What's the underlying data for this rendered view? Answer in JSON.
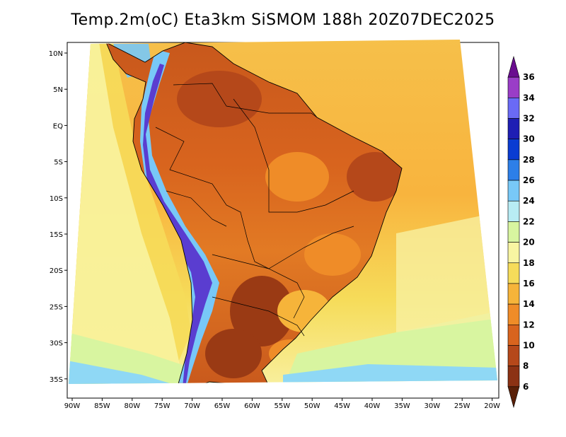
{
  "title": "Temp.2m(oC) Eta3km SiSMOM 188h 20Z07DEC2025",
  "axes": {
    "lat_labels": [
      "10N",
      "5N",
      "EQ",
      "5S",
      "10S",
      "15S",
      "20S",
      "25S",
      "30S",
      "35S"
    ],
    "lon_labels": [
      "90W",
      "85W",
      "80W",
      "75W",
      "70W",
      "65W",
      "60W",
      "55W",
      "50W",
      "45W",
      "40W",
      "35W",
      "30W",
      "25W",
      "20W"
    ]
  },
  "colorbar": {
    "labels": [
      "6",
      "8",
      "10",
      "12",
      "14",
      "16",
      "18",
      "20",
      "22",
      "24",
      "26",
      "28",
      "30",
      "32",
      "34",
      "36"
    ],
    "colors": [
      "#6a0d8f",
      "#9a3dc7",
      "#6a6af5",
      "#1e1eb4",
      "#0a3cd2",
      "#2d7fe8",
      "#78c8f7",
      "#b8ecf4",
      "#d8f5a0",
      "#f8f5a2",
      "#f6dc5a",
      "#f6b43a",
      "#ef8c28",
      "#d8641e",
      "#b5481a",
      "#8c3214",
      "#5a2008"
    ]
  },
  "palette": {
    "ocean_warm": "#f8b43e",
    "ocean_mid": "#f6dc5a",
    "ocean_cool": "#f8f5a2",
    "land_hot": "#c8581c",
    "land_very_hot": "#9a3a14",
    "andes_cold": "#5a3dd0",
    "andes_cool": "#78c8f7",
    "south_cold": "#8fd8f5",
    "south_pale": "#d8f5a0"
  }
}
